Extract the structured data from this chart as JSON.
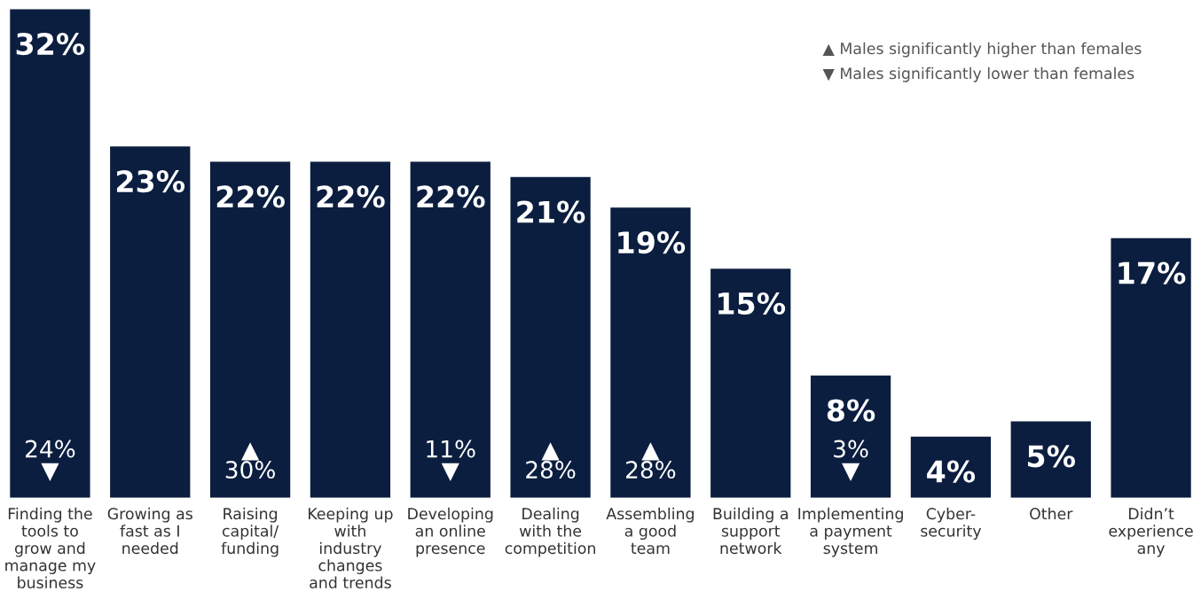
{
  "chart_data": {
    "type": "bar",
    "categories": [
      "Finding the\ntools to\ngrow and\nmanage my\nbusiness",
      "Growing as\nfast as I\nneeded",
      "Raising\ncapital/\nfunding",
      "Keeping up\nwith\nindustry\nchanges\nand trends",
      "Developing\nan online\npresence",
      "Dealing\nwith the\ncompetition",
      "Assembling\na good\nteam",
      "Building a\nsupport\nnetwork",
      "Implementing\na payment\nsystem",
      "Cyber-\nsecurity",
      "Other",
      "Didn’t\nexperience\nany"
    ],
    "values": [
      32,
      23,
      22,
      22,
      22,
      21,
      19,
      15,
      8,
      4,
      5,
      17
    ],
    "color": "#0b1e3f",
    "value_labels": [
      "32%",
      "23%",
      "22%",
      "22%",
      "22%",
      "21%",
      "19%",
      "15%",
      "8%",
      "4%",
      "5%",
      "17%"
    ],
    "annotations": [
      "24%\n▼",
      "▲\n30%",
      "11%\n▼",
      "▲\n28%",
      "▲\n28%",
      "3%\n▼",
      "▲ Males significantly higher than females",
      "▼ Males significantly lower than females"
    ],
    "grid": false,
    "legend": false
  }
}
